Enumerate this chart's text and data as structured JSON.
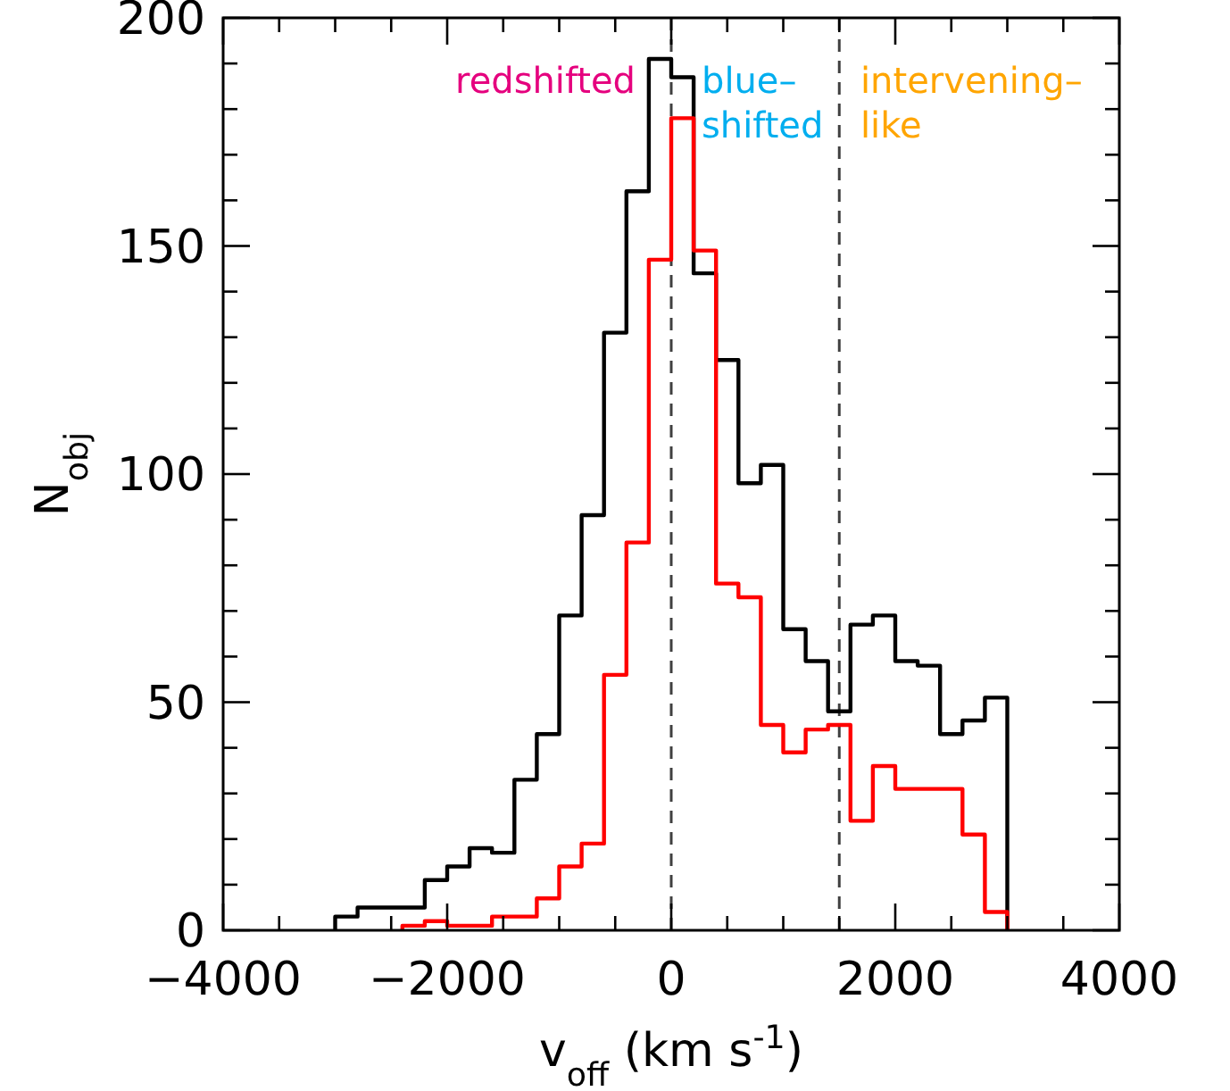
{
  "chart_data": {
    "type": "histogram",
    "xlabel": "v$_{off}$ (km s$^{-1}$)",
    "ylabel": "N$_{obj}$",
    "bins": [
      -3000,
      -2800,
      -2600,
      -2400,
      -2200,
      -2000,
      -1800,
      -1600,
      -1400,
      -1200,
      -1000,
      -800,
      -600,
      -400,
      -200,
      0,
      200,
      400,
      600,
      800,
      1000,
      1200,
      1400,
      1600,
      1800,
      2000,
      2200,
      2400,
      2600,
      2800,
      3000
    ],
    "series": [
      {
        "color": "#000000",
        "values": [
          3,
          5,
          5,
          5,
          11,
          14,
          18,
          17,
          33,
          43,
          69,
          91,
          131,
          162,
          191,
          187,
          144,
          125,
          98,
          102,
          66,
          59,
          48,
          67,
          69,
          59,
          58,
          43,
          46,
          51
        ]
      },
      {
        "color": "#ff0000",
        "bins": [
          -2400,
          -2200,
          -2000,
          -1800,
          -1600,
          -1400,
          -1200,
          -1000,
          -800,
          -600,
          -400,
          -200,
          0,
          200,
          400,
          600,
          800,
          1000,
          1200,
          1400,
          1600,
          1800,
          2000,
          2200,
          2400,
          2600,
          2800,
          3000
        ],
        "values": [
          1,
          2,
          1,
          1,
          3,
          3,
          7,
          14,
          19,
          56,
          85,
          147,
          178,
          149,
          76,
          73,
          45,
          39,
          44,
          45,
          24,
          36,
          31,
          31,
          31,
          21,
          4
        ]
      }
    ],
    "xlim": [
      -4000,
      4000
    ],
    "xticks": [
      {
        "value": -4000,
        "label": "−4000"
      },
      {
        "value": -3500,
        "label": null
      },
      {
        "value": -3000,
        "label": null
      },
      {
        "value": -2500,
        "label": null
      },
      {
        "value": -2000,
        "label": "−2000"
      },
      {
        "value": -1500,
        "label": null
      },
      {
        "value": -1000,
        "label": null
      },
      {
        "value": -500,
        "label": null
      },
      0,
      {
        "value": 500,
        "label": null
      },
      {
        "value": 1000,
        "label": null
      },
      {
        "value": 1500,
        "label": null
      },
      2000,
      {
        "value": 2500,
        "label": null
      },
      {
        "value": 3000,
        "label": null
      },
      {
        "value": 3500,
        "label": null
      },
      4000
    ],
    "ylim": [
      0,
      200
    ],
    "yticks": [
      0,
      {
        "value": 10,
        "label": null
      },
      {
        "value": 20,
        "label": null
      },
      {
        "value": 30,
        "label": null
      },
      {
        "value": 40,
        "label": null
      },
      50,
      {
        "value": 60,
        "label": null
      },
      {
        "value": 70,
        "label": null
      },
      {
        "value": 80,
        "label": null
      },
      {
        "value": 90,
        "label": null
      },
      100,
      {
        "value": 110,
        "label": null
      },
      {
        "value": 120,
        "label": null
      },
      {
        "value": 130,
        "label": null
      },
      {
        "value": 140,
        "label": null
      },
      150,
      {
        "value": 160,
        "label": null
      },
      {
        "value": 170,
        "label": null
      },
      {
        "value": 180,
        "label": null
      },
      {
        "value": 190,
        "label": null
      },
      200
    ],
    "ref_lines": [
      {
        "axis": "x",
        "value": 0,
        "color": "#404040",
        "line_style": "dashed"
      },
      {
        "axis": "x",
        "value": 1500,
        "color": "#404040",
        "line_style": "dashed"
      }
    ],
    "annotations": [
      "redshifted",
      "blue–\nshifted",
      "intervening–\nlike"
    ],
    "grid": false
  }
}
